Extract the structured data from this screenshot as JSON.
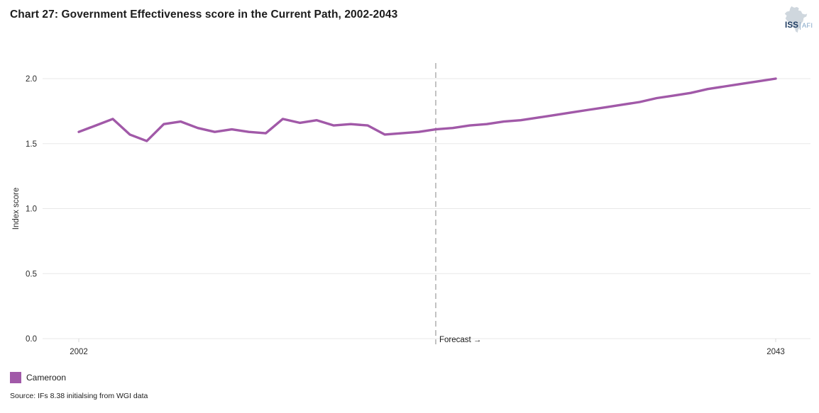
{
  "title": "Chart 27: Government Effectiveness score in the Current Path, 2002-2043",
  "logo": {
    "primary": "ISS",
    "separator": "|",
    "secondary": "AFI",
    "primary_color": "#1c3a60",
    "secondary_color": "#7fa3c6",
    "map_color": "#cfd7de"
  },
  "chart_data": {
    "type": "line",
    "title": "Chart 27: Government Effectiveness score in the Current Path, 2002-2043",
    "xlabel": "",
    "ylabel": "Index score",
    "xlim": [
      2002,
      2043
    ],
    "ylim": [
      0.0,
      2.0
    ],
    "yticks": [
      0.0,
      0.5,
      1.0,
      1.5,
      2.0
    ],
    "ytick_labels": [
      "0.0",
      "0.5",
      "1.0",
      "1.5",
      "2.0"
    ],
    "xticks": [
      2002,
      2043
    ],
    "xtick_labels": [
      "2002",
      "2043"
    ],
    "grid": true,
    "gridline_color": "#e8e8e8",
    "forecast_divider": {
      "year": 2023,
      "label": "Forecast →",
      "line_color": "#a9a9a9"
    },
    "legend_position": "bottom-left",
    "series": [
      {
        "name": "Cameroon",
        "color": "#A159A8",
        "x": [
          2002,
          2003,
          2004,
          2005,
          2006,
          2007,
          2008,
          2009,
          2010,
          2011,
          2012,
          2013,
          2014,
          2015,
          2016,
          2017,
          2018,
          2019,
          2020,
          2021,
          2022,
          2023,
          2024,
          2025,
          2026,
          2027,
          2028,
          2029,
          2030,
          2031,
          2032,
          2033,
          2034,
          2035,
          2036,
          2037,
          2038,
          2039,
          2040,
          2041,
          2042,
          2043
        ],
        "values": [
          1.59,
          1.64,
          1.69,
          1.57,
          1.52,
          1.65,
          1.67,
          1.62,
          1.59,
          1.61,
          1.59,
          1.58,
          1.69,
          1.66,
          1.68,
          1.64,
          1.65,
          1.64,
          1.57,
          1.58,
          1.59,
          1.61,
          1.62,
          1.64,
          1.65,
          1.67,
          1.68,
          1.7,
          1.72,
          1.74,
          1.76,
          1.78,
          1.8,
          1.82,
          1.85,
          1.87,
          1.89,
          1.92,
          1.94,
          1.96,
          1.98,
          2.0
        ]
      }
    ]
  },
  "legend": {
    "items": [
      {
        "label": "Cameroon",
        "color": "#A159A8"
      }
    ]
  },
  "source": "Source: IFs 8.38 initialsing from WGI data"
}
